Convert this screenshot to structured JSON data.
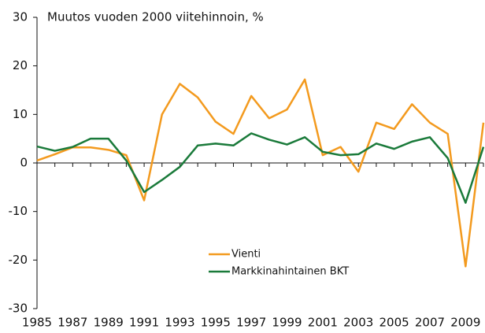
{
  "chart_data": {
    "type": "line",
    "title": "Muutos vuoden 2000 viitehinnoin, %",
    "x": [
      1985,
      1986,
      1987,
      1988,
      1989,
      1990,
      1991,
      1992,
      1993,
      1994,
      1995,
      1996,
      1997,
      1998,
      1999,
      2000,
      2001,
      2002,
      2003,
      2004,
      2005,
      2006,
      2007,
      2008,
      2009,
      2010
    ],
    "xlim": [
      1985,
      2010
    ],
    "xticks": [
      1985,
      1987,
      1989,
      1991,
      1993,
      1995,
      1997,
      1999,
      2001,
      2003,
      2005,
      2007,
      2009
    ],
    "ylim": [
      -30,
      30
    ],
    "yticks": [
      -30,
      -20,
      -10,
      0,
      10,
      20,
      30
    ],
    "grid": false,
    "legend": "lower center",
    "series": [
      {
        "name": "Vienti",
        "color": "#f39a1e",
        "values": [
          0.5,
          1.8,
          3.2,
          3.2,
          2.7,
          1.6,
          -7.7,
          10,
          16.3,
          13.5,
          8.5,
          6,
          13.8,
          9.2,
          11,
          17.2,
          1.6,
          3.3,
          -1.8,
          8.3,
          7,
          12.1,
          8.3,
          6,
          -21.3,
          8.3
        ]
      },
      {
        "name": "Markkinahintainen BKT",
        "color": "#1a7a3a",
        "values": [
          3.4,
          2.5,
          3.3,
          5,
          5,
          0.5,
          -6,
          -3.5,
          -0.8,
          3.6,
          4,
          3.6,
          6.1,
          4.8,
          3.8,
          5.3,
          2.3,
          1.6,
          1.8,
          4,
          2.9,
          4.4,
          5.3,
          1,
          -8.2,
          3.3
        ]
      }
    ]
  }
}
